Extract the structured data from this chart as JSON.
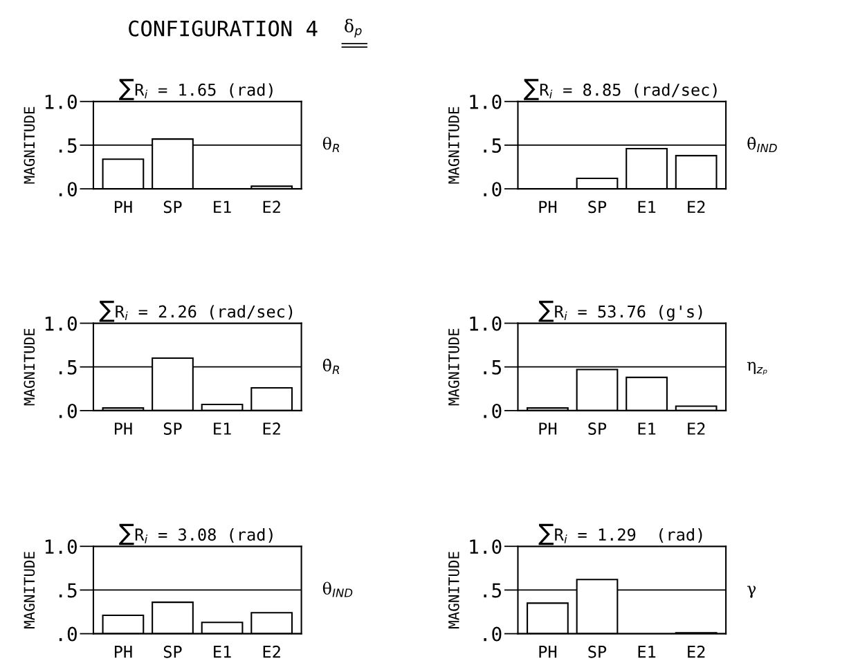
{
  "chart_data": [
    {
      "type": "bar",
      "title": "∑R$_{i}$ = 1.65 (rad)",
      "ylabel": "MAGNITUDE",
      "categories": [
        "PH",
        "SP",
        "E1",
        "E2"
      ],
      "values": [
        0.34,
        0.57,
        0,
        0.03
      ],
      "color": "#ffffff",
      "ylim": [
        0,
        1
      ],
      "yticks": [
        {
          "value": 0,
          "label": ".0"
        },
        {
          "value": 0.5,
          "label": ".5"
        },
        {
          "value": 1,
          "label": "1.0"
        }
      ],
      "grid": "y",
      "annotations": [
        "θ$_{R}$",
        "CONFIGURATION 4",
        "δ$_{p}$"
      ]
    },
    {
      "type": "bar",
      "title": "∑R$_{i}$ = 8.85 (rad/sec)",
      "ylabel": "MAGNITUDE",
      "categories": [
        "PH",
        "SP",
        "E1",
        "E2"
      ],
      "values": [
        0,
        0.12,
        0.46,
        0.38
      ],
      "color": "#ffffff",
      "ylim": [
        0,
        1
      ],
      "yticks": [
        {
          "value": 0,
          "label": ".0"
        },
        {
          "value": 0.5,
          "label": ".5"
        },
        {
          "value": 1,
          "label": "1.0"
        }
      ],
      "grid": "y",
      "annotations": [
        "θ̇$_{IND}$"
      ]
    },
    {
      "type": "bar",
      "title": "∑R$_{i}$ = 2.26 (rad/sec)",
      "ylabel": "MAGNITUDE",
      "categories": [
        "PH",
        "SP",
        "E1",
        "E2"
      ],
      "values": [
        0.03,
        0.6,
        0.07,
        0.26
      ],
      "color": "#ffffff",
      "ylim": [
        0,
        1
      ],
      "yticks": [
        {
          "value": 0,
          "label": ".0"
        },
        {
          "value": 0.5,
          "label": ".5"
        },
        {
          "value": 1,
          "label": "1.0"
        }
      ],
      "grid": "y",
      "annotations": [
        "θ̇$_{R}$"
      ]
    },
    {
      "type": "bar",
      "title": "∑R$_{i}$ = 53.76 (g's)",
      "ylabel": "MAGNITUDE",
      "categories": [
        "PH",
        "SP",
        "E1",
        "E2"
      ],
      "values": [
        0.03,
        0.47,
        0.38,
        0.05
      ],
      "color": "#ffffff",
      "ylim": [
        0,
        1
      ],
      "yticks": [
        {
          "value": 0,
          "label": ".0"
        },
        {
          "value": 0.5,
          "label": ".5"
        },
        {
          "value": 1,
          "label": "1.0"
        }
      ],
      "grid": "y",
      "annotations": [
        "η$_{zₚ}$"
      ]
    },
    {
      "type": "bar",
      "title": "∑R$_{i}$ = 3.08 (rad)",
      "ylabel": "MAGNITUDE",
      "categories": [
        "PH",
        "SP",
        "E1",
        "E2"
      ],
      "values": [
        0.21,
        0.36,
        0.13,
        0.24
      ],
      "color": "#ffffff",
      "ylim": [
        0,
        1
      ],
      "yticks": [
        {
          "value": 0,
          "label": ".0"
        },
        {
          "value": 0.5,
          "label": ".5"
        },
        {
          "value": 1,
          "label": "1.0"
        }
      ],
      "grid": "y",
      "annotations": [
        "θ$_{IND}$"
      ]
    },
    {
      "type": "bar",
      "title": "∑R$_{i}$ = 1.29  (rad)",
      "ylabel": "MAGNITUDE",
      "categories": [
        "PH",
        "SP",
        "E1",
        "E2"
      ],
      "values": [
        0.35,
        0.62,
        0,
        0.01
      ],
      "color": "#ffffff",
      "ylim": [
        0,
        1
      ],
      "yticks": [
        {
          "value": 0,
          "label": ".0"
        },
        {
          "value": 0.5,
          "label": ".5"
        },
        {
          "value": 1,
          "label": "1.0"
        }
      ],
      "grid": "y",
      "annotations": [
        "γ"
      ]
    }
  ]
}
